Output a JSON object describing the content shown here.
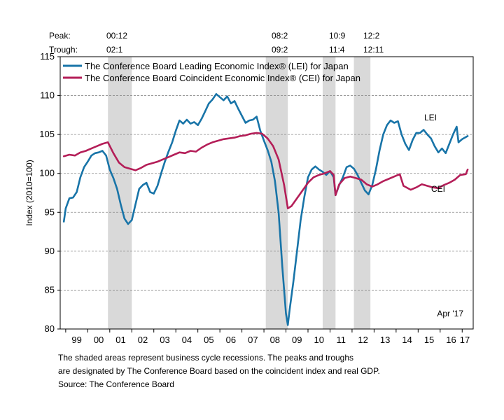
{
  "chart_data": {
    "type": "line",
    "title": "",
    "xlabel": "",
    "ylabel": "Index (2010=100)",
    "ylim": [
      80,
      115
    ],
    "y_ticks": [
      80,
      85,
      90,
      95,
      100,
      105,
      110,
      115
    ],
    "x_range": [
      1998.75,
      2017.5
    ],
    "x_tick_labels": [
      "99",
      "00",
      "01",
      "02",
      "03",
      "04",
      "05",
      "06",
      "07",
      "08",
      "09",
      "10",
      "11",
      "12",
      "13",
      "14",
      "15",
      "16",
      "17"
    ],
    "grid": "horizontal dashed",
    "legend_position": "top-left",
    "annotation": "Apr '17",
    "cycle_table": {
      "peak_label": "Peak:",
      "trough_label": "Trough:",
      "peaks": [
        "00:12",
        "08:2",
        "10:9",
        "12:2"
      ],
      "troughs": [
        "02:1",
        "09:2",
        "11:4",
        "12:11"
      ]
    },
    "recessions": [
      {
        "start": "2000-12",
        "end": "2002-01"
      },
      {
        "start": "2008-02",
        "end": "2009-02"
      },
      {
        "start": "2010-09",
        "end": "2011-04"
      },
      {
        "start": "2012-02",
        "end": "2012-11"
      }
    ],
    "series": [
      {
        "name": "The Conference Board Leading Economic Index® (LEI) for Japan",
        "label": "LEI",
        "color": "#1874a8",
        "points": [
          [
            "1998-12",
            93.8
          ],
          [
            "1999-01",
            95.5
          ],
          [
            "1999-03",
            96.8
          ],
          [
            "1999-05",
            96.9
          ],
          [
            "1999-07",
            97.6
          ],
          [
            "1999-09",
            99.5
          ],
          [
            "1999-11",
            100.8
          ],
          [
            "2000-01",
            101.5
          ],
          [
            "2000-03",
            102.3
          ],
          [
            "2000-05",
            102.6
          ],
          [
            "2000-07",
            102.7
          ],
          [
            "2000-09",
            102.9
          ],
          [
            "2000-11",
            102.3
          ],
          [
            "2001-01",
            100.5
          ],
          [
            "2001-03",
            99.4
          ],
          [
            "2001-05",
            98.0
          ],
          [
            "2001-07",
            96.0
          ],
          [
            "2001-09",
            94.2
          ],
          [
            "2001-11",
            93.5
          ],
          [
            "2002-01",
            94.0
          ],
          [
            "2002-03",
            96.0
          ],
          [
            "2002-05",
            98.0
          ],
          [
            "2002-07",
            98.5
          ],
          [
            "2002-09",
            98.8
          ],
          [
            "2002-11",
            97.6
          ],
          [
            "2003-01",
            97.4
          ],
          [
            "2003-03",
            98.4
          ],
          [
            "2003-05",
            100.0
          ],
          [
            "2003-07",
            101.5
          ],
          [
            "2003-09",
            102.8
          ],
          [
            "2003-11",
            104.0
          ],
          [
            "2004-01",
            105.5
          ],
          [
            "2004-03",
            106.8
          ],
          [
            "2004-05",
            106.4
          ],
          [
            "2004-07",
            106.9
          ],
          [
            "2004-09",
            106.4
          ],
          [
            "2004-11",
            106.6
          ],
          [
            "2005-01",
            106.2
          ],
          [
            "2005-03",
            107.0
          ],
          [
            "2005-05",
            108.0
          ],
          [
            "2005-07",
            109.0
          ],
          [
            "2005-09",
            109.5
          ],
          [
            "2005-11",
            110.2
          ],
          [
            "2006-01",
            109.8
          ],
          [
            "2006-03",
            109.4
          ],
          [
            "2006-05",
            109.9
          ],
          [
            "2006-07",
            109.0
          ],
          [
            "2006-09",
            109.3
          ],
          [
            "2006-11",
            108.3
          ],
          [
            "2007-01",
            107.4
          ],
          [
            "2007-03",
            106.5
          ],
          [
            "2007-05",
            106.8
          ],
          [
            "2007-07",
            106.9
          ],
          [
            "2007-09",
            107.3
          ],
          [
            "2007-11",
            105.5
          ],
          [
            "2008-01",
            104.2
          ],
          [
            "2008-03",
            103.0
          ],
          [
            "2008-05",
            101.5
          ],
          [
            "2008-07",
            99.0
          ],
          [
            "2008-09",
            95.0
          ],
          [
            "2008-11",
            88.0
          ],
          [
            "2009-01",
            82.0
          ],
          [
            "2009-02",
            80.5
          ],
          [
            "2009-03",
            82.5
          ],
          [
            "2009-05",
            86.0
          ],
          [
            "2009-07",
            90.0
          ],
          [
            "2009-09",
            94.0
          ],
          [
            "2009-11",
            97.0
          ],
          [
            "2010-01",
            99.5
          ],
          [
            "2010-03",
            100.5
          ],
          [
            "2010-05",
            100.9
          ],
          [
            "2010-07",
            100.5
          ],
          [
            "2010-09",
            100.2
          ],
          [
            "2010-11",
            99.8
          ],
          [
            "2011-01",
            100.3
          ],
          [
            "2011-03",
            99.5
          ],
          [
            "2011-04",
            97.2
          ],
          [
            "2011-06",
            98.5
          ],
          [
            "2011-08",
            99.5
          ],
          [
            "2011-10",
            100.8
          ],
          [
            "2011-12",
            101.0
          ],
          [
            "2012-02",
            100.6
          ],
          [
            "2012-04",
            99.8
          ],
          [
            "2012-06",
            98.8
          ],
          [
            "2012-08",
            97.8
          ],
          [
            "2012-10",
            97.3
          ],
          [
            "2012-12",
            98.5
          ],
          [
            "2013-02",
            100.5
          ],
          [
            "2013-04",
            103.0
          ],
          [
            "2013-06",
            105.0
          ],
          [
            "2013-08",
            106.2
          ],
          [
            "2013-10",
            106.8
          ],
          [
            "2013-12",
            106.5
          ],
          [
            "2014-02",
            106.7
          ],
          [
            "2014-04",
            105.0
          ],
          [
            "2014-06",
            103.8
          ],
          [
            "2014-08",
            103.0
          ],
          [
            "2014-10",
            104.3
          ],
          [
            "2014-12",
            105.2
          ],
          [
            "2015-02",
            105.2
          ],
          [
            "2015-04",
            105.6
          ],
          [
            "2015-06",
            105.0
          ],
          [
            "2015-08",
            104.5
          ],
          [
            "2015-10",
            103.5
          ],
          [
            "2015-12",
            102.7
          ],
          [
            "2016-02",
            103.2
          ],
          [
            "2016-04",
            102.6
          ],
          [
            "2016-06",
            103.8
          ],
          [
            "2016-08",
            105.0
          ],
          [
            "2016-10",
            106.0
          ],
          [
            "2016-11",
            104.0
          ],
          [
            "2017-01",
            104.4
          ],
          [
            "2017-04",
            104.8
          ]
        ]
      },
      {
        "name": "The Conference Board Coincident Economic Index® (CEI) for Japan",
        "label": "CEI",
        "color": "#b41e58",
        "points": [
          [
            "1998-12",
            102.2
          ],
          [
            "1999-03",
            102.4
          ],
          [
            "1999-06",
            102.3
          ],
          [
            "1999-09",
            102.7
          ],
          [
            "1999-12",
            102.9
          ],
          [
            "2000-03",
            103.2
          ],
          [
            "2000-06",
            103.5
          ],
          [
            "2000-09",
            103.8
          ],
          [
            "2000-12",
            104.0
          ],
          [
            "2001-03",
            102.6
          ],
          [
            "2001-06",
            101.4
          ],
          [
            "2001-09",
            100.8
          ],
          [
            "2001-12",
            100.6
          ],
          [
            "2002-03",
            100.4
          ],
          [
            "2002-06",
            100.7
          ],
          [
            "2002-09",
            101.1
          ],
          [
            "2002-12",
            101.3
          ],
          [
            "2003-03",
            101.5
          ],
          [
            "2003-06",
            101.8
          ],
          [
            "2003-09",
            102.1
          ],
          [
            "2003-12",
            102.4
          ],
          [
            "2004-03",
            102.7
          ],
          [
            "2004-06",
            102.6
          ],
          [
            "2004-09",
            102.9
          ],
          [
            "2004-12",
            102.8
          ],
          [
            "2005-03",
            103.3
          ],
          [
            "2005-06",
            103.7
          ],
          [
            "2005-09",
            104.0
          ],
          [
            "2005-12",
            104.2
          ],
          [
            "2006-03",
            104.4
          ],
          [
            "2006-06",
            104.5
          ],
          [
            "2006-09",
            104.6
          ],
          [
            "2006-12",
            104.8
          ],
          [
            "2007-03",
            104.9
          ],
          [
            "2007-06",
            105.1
          ],
          [
            "2007-09",
            105.2
          ],
          [
            "2007-12",
            105.1
          ],
          [
            "2008-03",
            104.5
          ],
          [
            "2008-06",
            103.5
          ],
          [
            "2008-09",
            101.8
          ],
          [
            "2008-12",
            98.5
          ],
          [
            "2009-02",
            95.5
          ],
          [
            "2009-04",
            95.8
          ],
          [
            "2009-07",
            96.8
          ],
          [
            "2009-10",
            97.8
          ],
          [
            "2010-01",
            98.8
          ],
          [
            "2010-04",
            99.5
          ],
          [
            "2010-07",
            99.8
          ],
          [
            "2010-10",
            100.0
          ],
          [
            "2011-01",
            100.3
          ],
          [
            "2011-03",
            99.8
          ],
          [
            "2011-04",
            97.2
          ],
          [
            "2011-06",
            98.6
          ],
          [
            "2011-09",
            99.4
          ],
          [
            "2011-12",
            99.6
          ],
          [
            "2012-03",
            99.4
          ],
          [
            "2012-06",
            99.2
          ],
          [
            "2012-09",
            98.6
          ],
          [
            "2012-12",
            98.3
          ],
          [
            "2013-03",
            98.6
          ],
          [
            "2013-06",
            99.0
          ],
          [
            "2013-09",
            99.3
          ],
          [
            "2013-12",
            99.6
          ],
          [
            "2014-03",
            99.9
          ],
          [
            "2014-05",
            98.4
          ],
          [
            "2014-09",
            97.9
          ],
          [
            "2014-12",
            98.2
          ],
          [
            "2015-03",
            98.6
          ],
          [
            "2015-06",
            98.4
          ],
          [
            "2015-09",
            98.2
          ],
          [
            "2015-12",
            98.1
          ],
          [
            "2016-03",
            98.5
          ],
          [
            "2016-06",
            98.8
          ],
          [
            "2016-09",
            99.2
          ],
          [
            "2016-12",
            99.8
          ],
          [
            "2017-03",
            99.9
          ],
          [
            "2017-04",
            100.5
          ]
        ]
      }
    ]
  },
  "footer": {
    "line1": "The shaded areas represent business cycle recessions. The peaks and troughs",
    "line2": "are designated by The Conference Board based on the coincident index and real GDP.",
    "line3": "Source: The Conference Board"
  }
}
